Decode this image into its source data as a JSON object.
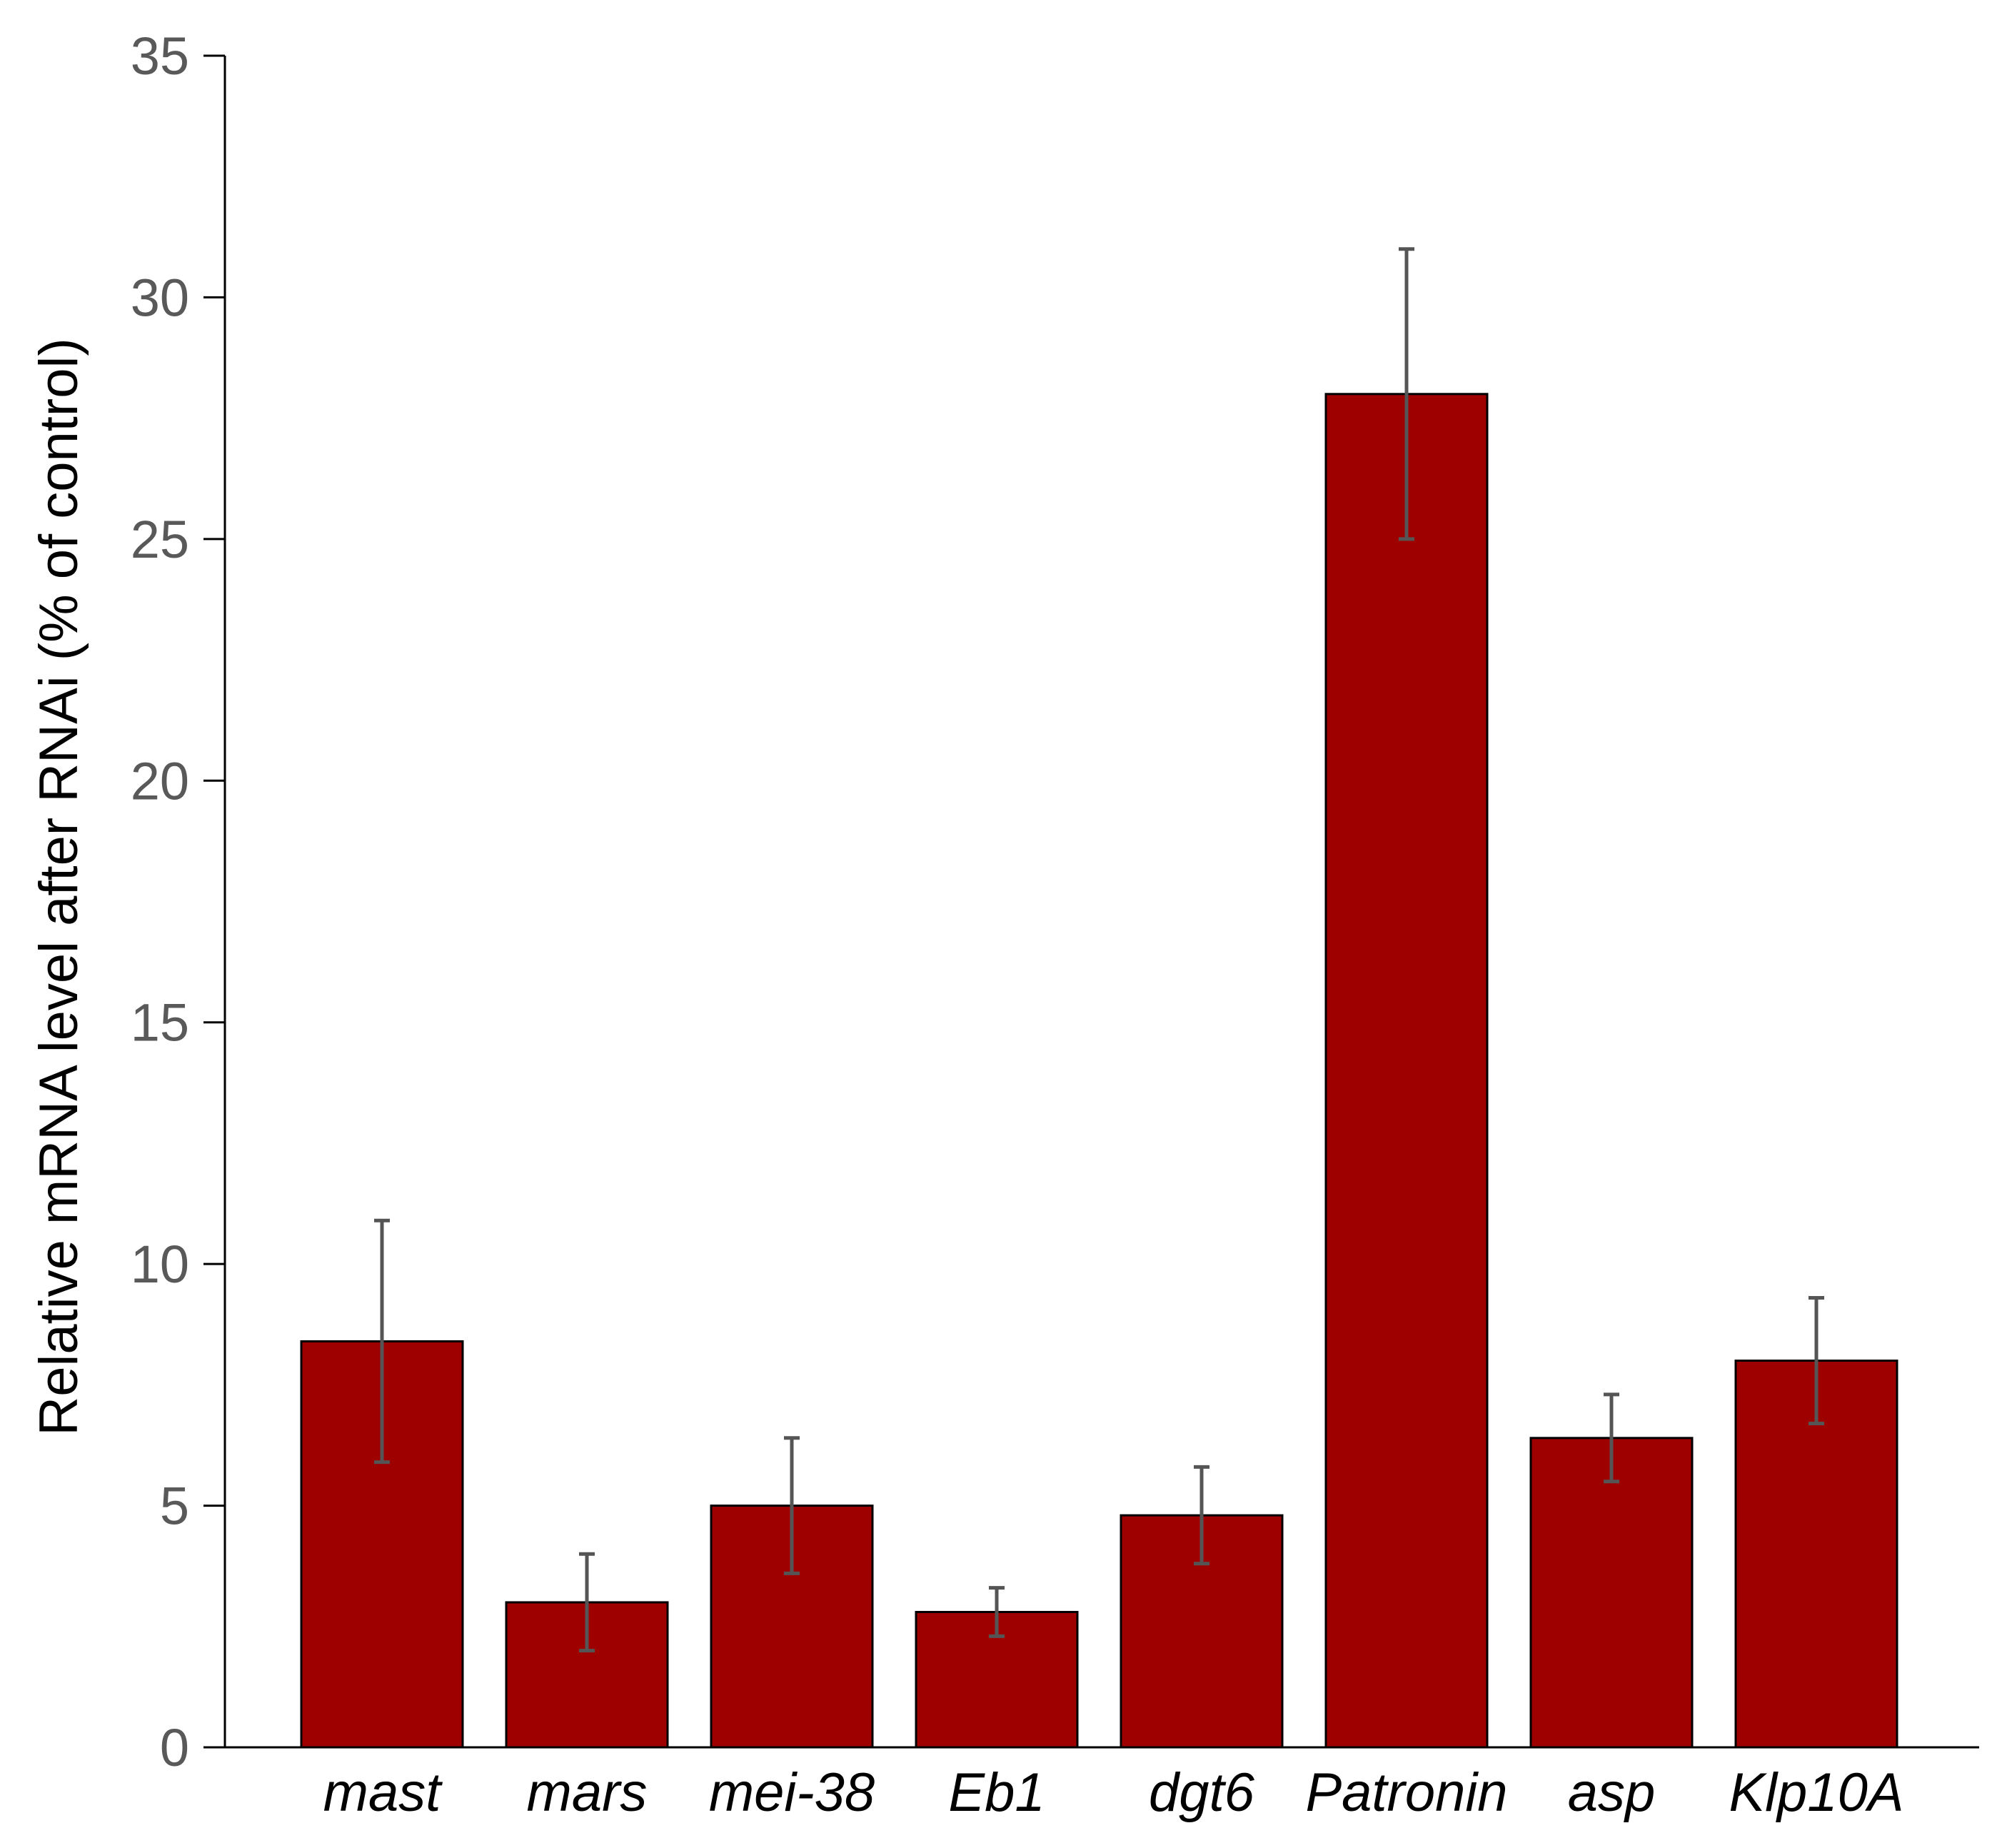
{
  "chart_data": {
    "type": "bar",
    "categories": [
      "mast",
      "mars",
      "mei-38",
      "Eb1",
      "dgt6",
      "Patronin",
      "asp",
      "Klp10A"
    ],
    "series": [
      {
        "values": [
          8.4,
          3.0,
          5.0,
          2.8,
          4.8,
          28.0,
          6.4,
          8.0
        ],
        "error_low": [
          5.9,
          2.0,
          3.6,
          2.3,
          3.8,
          25.0,
          5.5,
          6.7
        ],
        "error_high": [
          10.9,
          4.0,
          6.4,
          3.3,
          5.8,
          31.0,
          7.3,
          9.3
        ]
      }
    ],
    "ylabel": "Relative mRNA level after RNAi (% of control)",
    "ylim": [
      0,
      35
    ],
    "yticks": [
      "0",
      "5",
      "10",
      "15",
      "20",
      "25",
      "30",
      "35"
    ],
    "grid": false,
    "colors": {
      "bar": "#9e0000",
      "bar_stroke": "#000000",
      "error_bar": "#555555",
      "axis": "#000000"
    }
  }
}
